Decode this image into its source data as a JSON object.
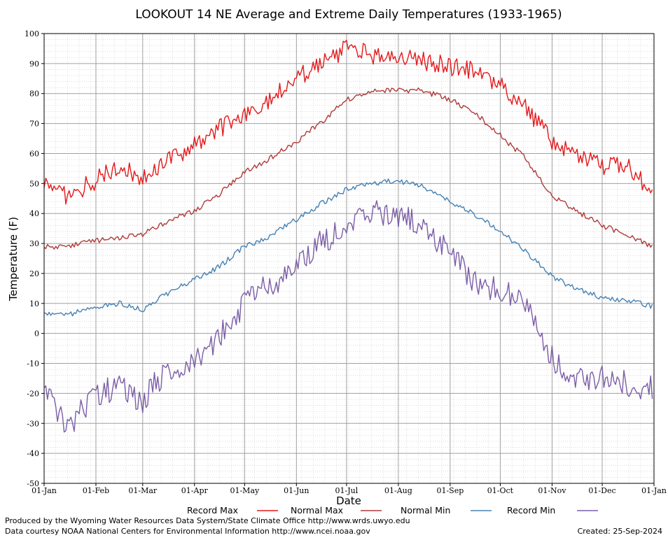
{
  "chart_data": {
    "type": "line",
    "title": "LOOKOUT 14 NE Average and Extreme Daily Temperatures (1933-1965)",
    "xlabel": "Date",
    "ylabel": "Temperature (F)",
    "ylim": [
      -50,
      100
    ],
    "yticks": [
      -50,
      -40,
      -30,
      -20,
      -10,
      0,
      10,
      20,
      30,
      40,
      50,
      60,
      70,
      80,
      90,
      100
    ],
    "xticks": [
      "01-Jan",
      "01-Feb",
      "01-Mar",
      "01-Apr",
      "01-May",
      "01-Jun",
      "01-Jul",
      "01-Aug",
      "01-Sep",
      "01-Oct",
      "01-Nov",
      "01-Dec",
      "01-Jan"
    ],
    "grid": true,
    "legend_position": "bottom",
    "x_unit": "approximate date",
    "x": [
      "01-Jan",
      "15-Jan",
      "01-Feb",
      "15-Feb",
      "01-Mar",
      "15-Mar",
      "01-Apr",
      "15-Apr",
      "01-May",
      "15-May",
      "01-Jun",
      "15-Jun",
      "01-Jul",
      "15-Jul",
      "01-Aug",
      "15-Aug",
      "01-Sep",
      "15-Sep",
      "01-Oct",
      "15-Oct",
      "01-Nov",
      "15-Nov",
      "01-Dec",
      "15-Dec",
      "31-Dec"
    ],
    "series": [
      {
        "name": "Record Max",
        "color": "#e41a1c",
        "values": [
          50,
          46,
          51,
          56,
          52,
          57,
          63,
          68,
          73,
          77,
          85,
          90,
          95,
          93,
          92,
          91,
          89,
          88,
          83,
          76,
          64,
          60,
          56,
          57,
          47
        ]
      },
      {
        "name": "Normal Max",
        "color": "#b03a3a",
        "values": [
          29,
          29,
          31,
          32,
          33,
          37,
          41,
          46,
          54,
          58,
          64,
          70,
          78,
          81,
          81,
          81,
          78,
          74,
          66,
          59,
          46,
          41,
          36,
          33,
          29
        ]
      },
      {
        "name": "Normal Min",
        "color": "#4682b4",
        "values": [
          7,
          6,
          9,
          10,
          8,
          13,
          18,
          22,
          29,
          32,
          38,
          43,
          48,
          50,
          51,
          49,
          44,
          40,
          34,
          28,
          19,
          15,
          12,
          11,
          9
        ]
      },
      {
        "name": "Record Min",
        "color": "#7b5ea7",
        "values": [
          -18,
          -32,
          -20,
          -18,
          -22,
          -12,
          -10,
          -1,
          10,
          16,
          22,
          30,
          35,
          40,
          40,
          36,
          27,
          17,
          15,
          10,
          -8,
          -15,
          -14,
          -17,
          -18
        ]
      }
    ]
  },
  "credits": {
    "left_line1": "Produced by the Wyoming Water Resources Data System/State Climate Office http://www.wrds.uwyo.edu",
    "left_line2": "Data courtesy NOAA National Centers for Environmental Information http://www.ncei.noaa.gov",
    "created": "Created:  25-Sep-2024"
  }
}
